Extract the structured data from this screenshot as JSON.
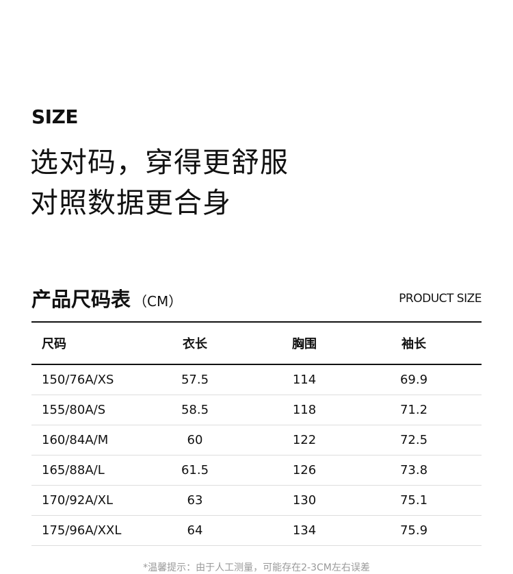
{
  "section_label": "SIZE",
  "headline": [
    "选对码，穿得更舒服",
    "对照数据更合身"
  ],
  "table_title": "产品尺码表",
  "table_unit": "（CM）",
  "product_size_label": "PRODUCT SIZE",
  "table": {
    "headers": [
      "尺码",
      "衣长",
      "胸围",
      "袖长"
    ],
    "rows": [
      [
        "150/76A/XS",
        "57.5",
        "114",
        "69.9"
      ],
      [
        "155/80A/S",
        "58.5",
        "118",
        "71.2"
      ],
      [
        "160/84A/M",
        "60",
        "122",
        "72.5"
      ],
      [
        "165/88A/L",
        "61.5",
        "126",
        "73.8"
      ],
      [
        "170/92A/XL",
        "63",
        "130",
        "75.1"
      ],
      [
        "175/96A/XXL",
        "64",
        "134",
        "75.9"
      ]
    ]
  },
  "note": "*温馨提示：由于人工测量，可能存在2-3CM左右误差"
}
